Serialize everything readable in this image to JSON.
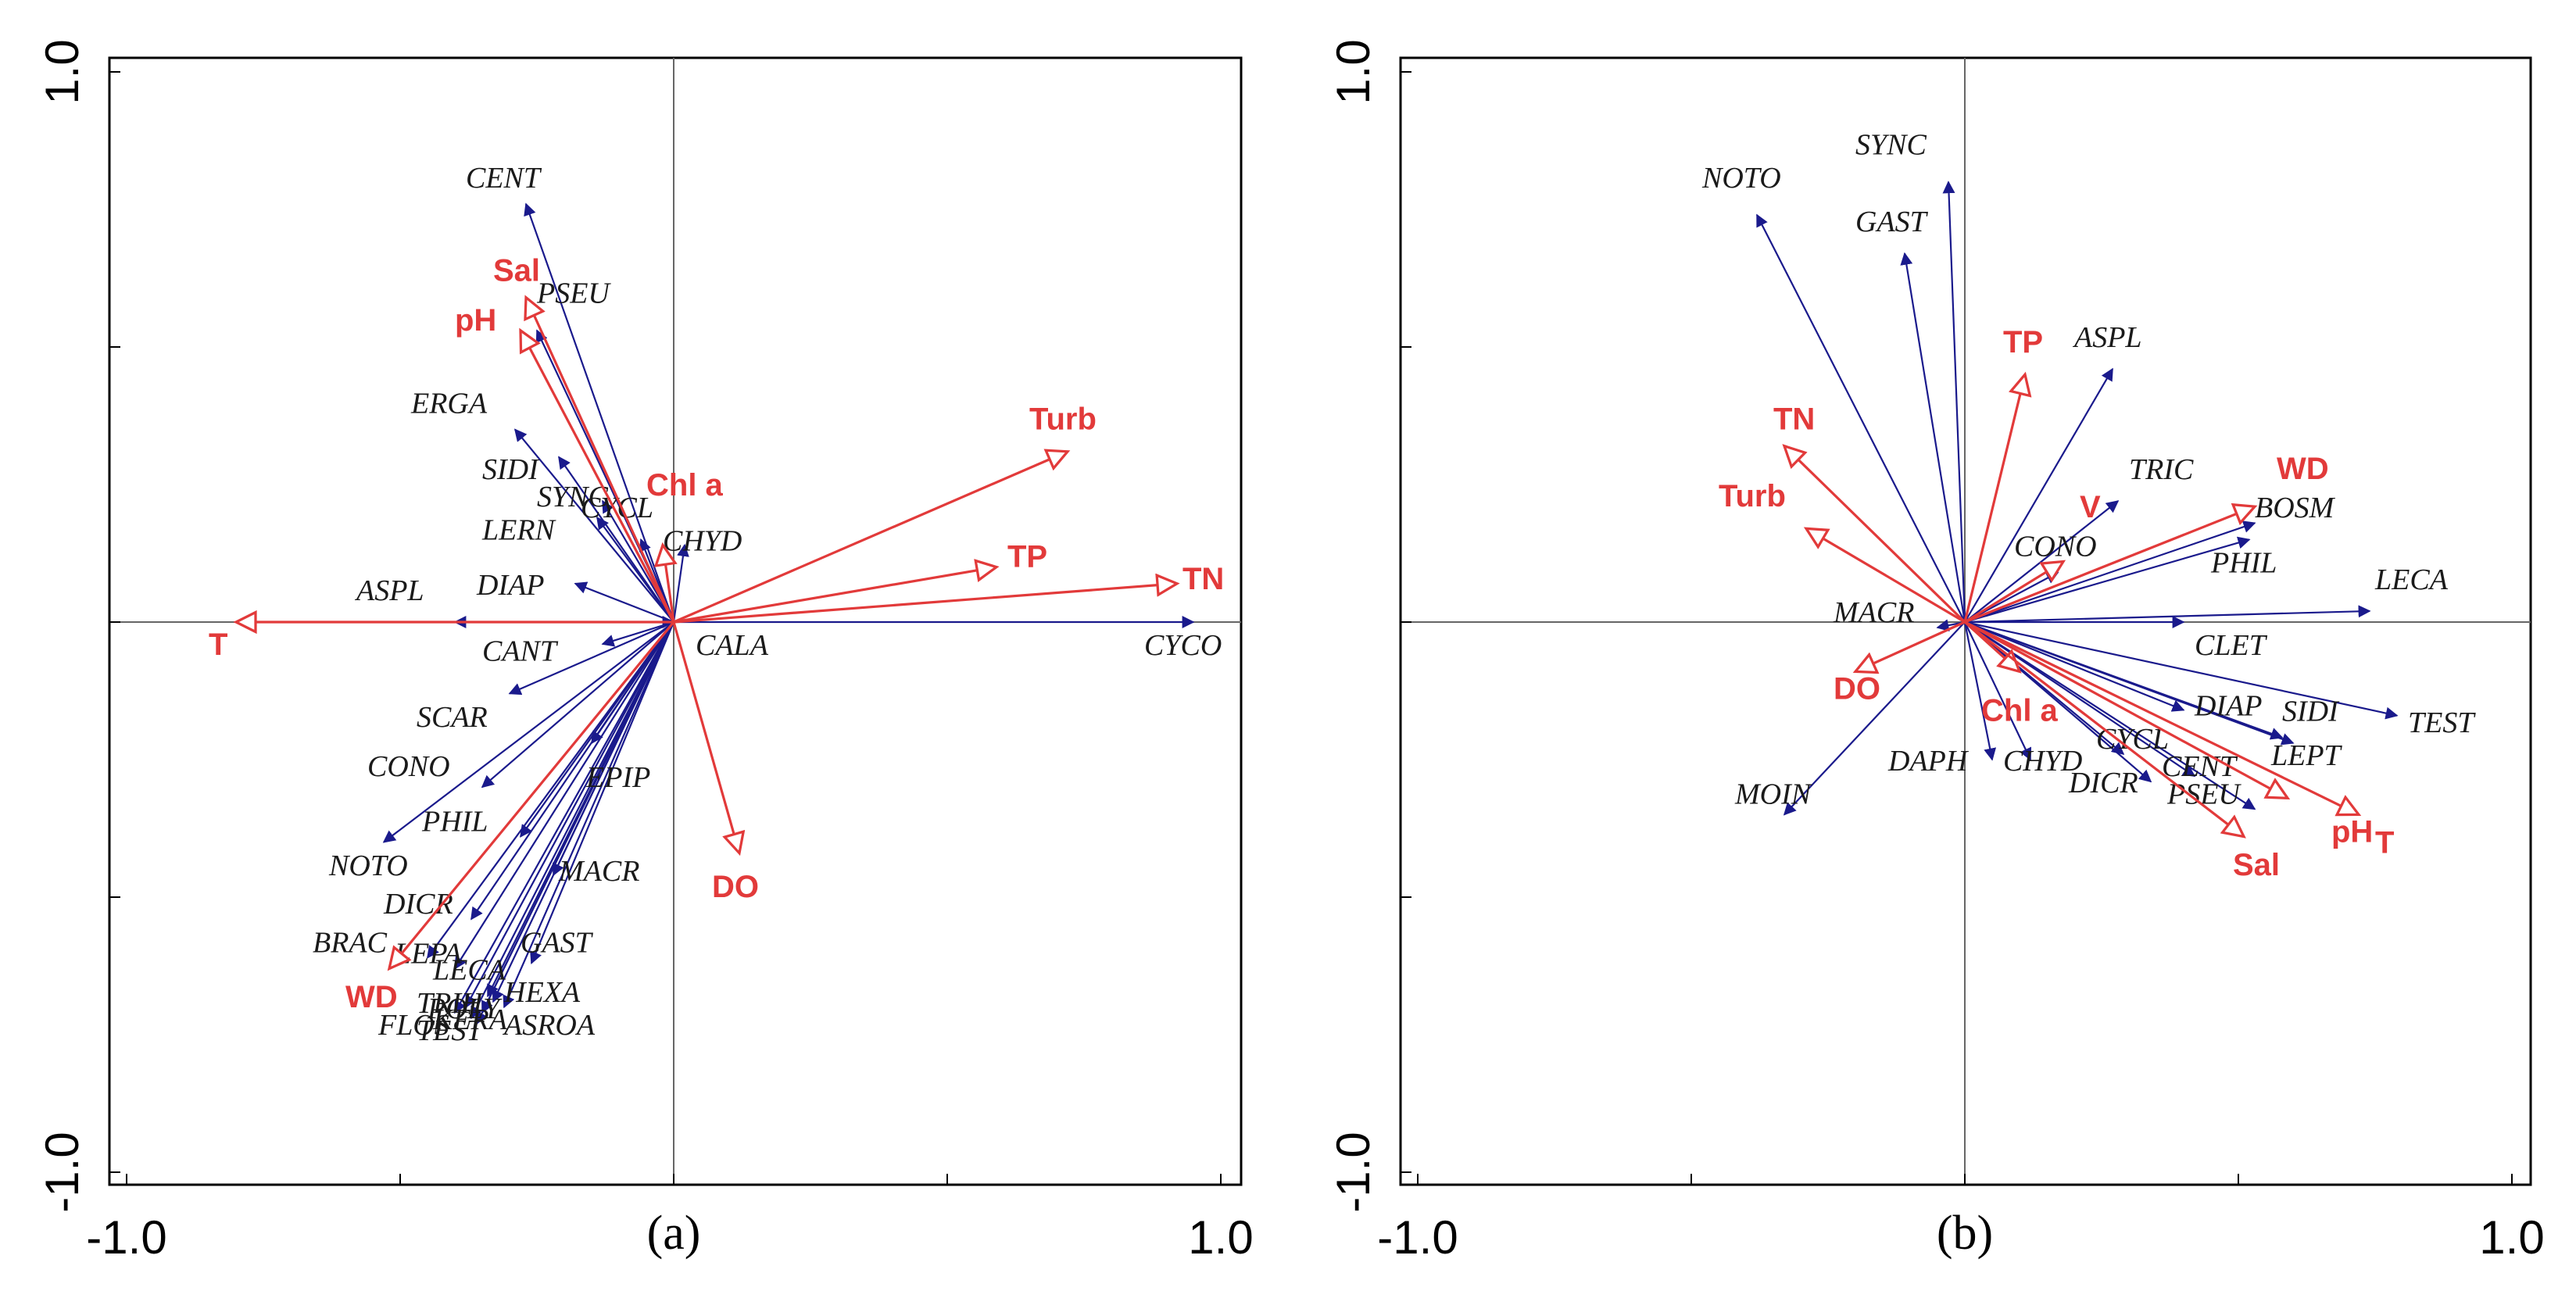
{
  "colors": {
    "species": "#1a1a8c",
    "env": "#e23a3a",
    "frame": "#000000",
    "axis": "#555555"
  },
  "chart_data": [
    {
      "type": "scatter",
      "plot_kind": "biplot",
      "panel_label": "(a)",
      "xlim": [
        -1.0,
        1.0
      ],
      "ylim": [
        -1.0,
        1.0
      ],
      "x_tick_labels": [
        "-1.0",
        "1.0"
      ],
      "y_tick_labels": [
        "1.0",
        "-1.0"
      ],
      "species": [
        {
          "name": "CENT",
          "x": -0.27,
          "y": 0.76
        },
        {
          "name": "PSEU",
          "x": -0.25,
          "y": 0.53
        },
        {
          "name": "ERGA",
          "x": -0.29,
          "y": 0.35
        },
        {
          "name": "SIDI",
          "x": -0.21,
          "y": 0.3
        },
        {
          "name": "SYNC",
          "x": -0.13,
          "y": 0.22
        },
        {
          "name": "CYCL",
          "x": -0.06,
          "y": 0.15
        },
        {
          "name": "LERN",
          "x": -0.14,
          "y": 0.19
        },
        {
          "name": "CHYD",
          "x": 0.02,
          "y": 0.14
        },
        {
          "name": "DIAP",
          "x": -0.18,
          "y": 0.07
        },
        {
          "name": "ASPL",
          "x": -0.4,
          "y": 0.0
        },
        {
          "name": "CALA",
          "x": 0.0,
          "y": 0.0
        },
        {
          "name": "CYCO",
          "x": 0.95,
          "y": 0.0
        },
        {
          "name": "CANT",
          "x": -0.13,
          "y": -0.04
        },
        {
          "name": "SCAR",
          "x": -0.3,
          "y": -0.13
        },
        {
          "name": "CONO",
          "x": -0.35,
          "y": -0.3
        },
        {
          "name": "PHIL",
          "x": -0.28,
          "y": -0.39
        },
        {
          "name": "NOTO",
          "x": -0.53,
          "y": -0.4
        },
        {
          "name": "EPIP",
          "x": -0.15,
          "y": -0.22
        },
        {
          "name": "MACR",
          "x": -0.22,
          "y": -0.46
        },
        {
          "name": "DICR",
          "x": -0.37,
          "y": -0.54
        },
        {
          "name": "GAST",
          "x": -0.26,
          "y": -0.62
        },
        {
          "name": "BRAC",
          "x": -0.45,
          "y": -0.61
        },
        {
          "name": "LEPA",
          "x": -0.4,
          "y": -0.63
        },
        {
          "name": "LECA",
          "x": -0.34,
          "y": -0.68
        },
        {
          "name": "HEXA",
          "x": -0.31,
          "y": -0.7
        },
        {
          "name": "TRIH",
          "x": -0.37,
          "y": -0.72
        },
        {
          "name": "POLY",
          "x": -0.35,
          "y": -0.71
        },
        {
          "name": "TEST",
          "x": -0.38,
          "y": -0.7
        },
        {
          "name": "FLOS",
          "x": -0.4,
          "y": -0.71
        },
        {
          "name": "KERA",
          "x": -0.36,
          "y": -0.73
        },
        {
          "name": "ASROA",
          "x": -0.33,
          "y": -0.69
        }
      ],
      "species_labels": [
        {
          "text": "CENT",
          "x": -0.38,
          "y": 0.79
        },
        {
          "text": "PSEU",
          "x": -0.25,
          "y": 0.58
        },
        {
          "text": "ERGA",
          "x": -0.48,
          "y": 0.38
        },
        {
          "text": "SIDI",
          "x": -0.35,
          "y": 0.26
        },
        {
          "text": "SYNC",
          "x": -0.25,
          "y": 0.21
        },
        {
          "text": "CYCL",
          "x": -0.17,
          "y": 0.19
        },
        {
          "text": "LERN",
          "x": -0.35,
          "y": 0.15
        },
        {
          "text": "CHYD",
          "x": -0.02,
          "y": 0.13
        },
        {
          "text": "DIAP",
          "x": -0.36,
          "y": 0.05
        },
        {
          "text": "ASPL",
          "x": -0.58,
          "y": 0.04
        },
        {
          "text": "CALA",
          "x": 0.04,
          "y": -0.06
        },
        {
          "text": "CYCO",
          "x": 0.86,
          "y": -0.06
        },
        {
          "text": "CANT",
          "x": -0.35,
          "y": -0.07
        },
        {
          "text": "SCAR",
          "x": -0.47,
          "y": -0.19
        },
        {
          "text": "CONO",
          "x": -0.56,
          "y": -0.28
        },
        {
          "text": "PHIL",
          "x": -0.46,
          "y": -0.38
        },
        {
          "text": "NOTO",
          "x": -0.63,
          "y": -0.46
        },
        {
          "text": "EPIP",
          "x": -0.16,
          "y": -0.3
        },
        {
          "text": "MACR",
          "x": -0.21,
          "y": -0.47
        },
        {
          "text": "DICR",
          "x": -0.53,
          "y": -0.53
        },
        {
          "text": "GAST",
          "x": -0.28,
          "y": -0.6
        },
        {
          "text": "BRAC",
          "x": -0.66,
          "y": -0.6
        },
        {
          "text": "LEPA",
          "x": -0.51,
          "y": -0.62
        },
        {
          "text": "LECA",
          "x": -0.44,
          "y": -0.65
        },
        {
          "text": "HEXA",
          "x": -0.31,
          "y": -0.69
        },
        {
          "text": "TRIH",
          "x": -0.47,
          "y": -0.71
        },
        {
          "text": "POLY",
          "x": -0.45,
          "y": -0.72
        },
        {
          "text": "TEST",
          "x": -0.47,
          "y": -0.76
        },
        {
          "text": "FLOS",
          "x": -0.54,
          "y": -0.75
        },
        {
          "text": "KERA",
          "x": -0.44,
          "y": -0.74
        },
        {
          "text": "ASROA",
          "x": -0.31,
          "y": -0.75
        }
      ],
      "environment": [
        {
          "name": "T",
          "x": -0.8,
          "y": 0.0,
          "lx": -0.85,
          "ly": -0.06
        },
        {
          "name": "Sal",
          "x": -0.27,
          "y": 0.59,
          "lx": -0.33,
          "ly": 0.62
        },
        {
          "name": "pH",
          "x": -0.28,
          "y": 0.53,
          "lx": -0.4,
          "ly": 0.53
        },
        {
          "name": "Chl a",
          "x": -0.02,
          "y": 0.14,
          "lx": -0.05,
          "ly": 0.23
        },
        {
          "name": "Turb",
          "x": 0.72,
          "y": 0.31,
          "lx": 0.65,
          "ly": 0.35
        },
        {
          "name": "TP",
          "x": 0.59,
          "y": 0.1,
          "lx": 0.61,
          "ly": 0.1
        },
        {
          "name": "TN",
          "x": 0.92,
          "y": 0.07,
          "lx": 0.93,
          "ly": 0.06
        },
        {
          "name": "DO",
          "x": 0.12,
          "y": -0.42,
          "lx": 0.07,
          "ly": -0.5
        },
        {
          "name": "WD",
          "x": -0.52,
          "y": -0.63,
          "lx": -0.6,
          "ly": -0.7
        }
      ]
    },
    {
      "type": "scatter",
      "plot_kind": "biplot",
      "panel_label": "(b)",
      "xlim": [
        -1.0,
        1.0
      ],
      "ylim": [
        -1.0,
        1.0
      ],
      "x_tick_labels": [
        "-1.0",
        "1.0"
      ],
      "y_tick_labels": [
        "1.0",
        "-1.0"
      ],
      "species": [
        {
          "name": "NOTO",
          "x": -0.38,
          "y": 0.74
        },
        {
          "name": "SYNC",
          "x": -0.03,
          "y": 0.8
        },
        {
          "name": "GAST",
          "x": -0.11,
          "y": 0.67
        },
        {
          "name": "ASPL",
          "x": 0.27,
          "y": 0.46
        },
        {
          "name": "TRIC",
          "x": 0.28,
          "y": 0.22
        },
        {
          "name": "CONO",
          "x": 0.17,
          "y": 0.09
        },
        {
          "name": "BOSM",
          "x": 0.53,
          "y": 0.18
        },
        {
          "name": "PHIL",
          "x": 0.52,
          "y": 0.15
        },
        {
          "name": "LECA",
          "x": 0.74,
          "y": 0.02
        },
        {
          "name": "CLET",
          "x": 0.4,
          "y": 0.0
        },
        {
          "name": "MACR",
          "x": -0.05,
          "y": -0.01
        },
        {
          "name": "DIAP",
          "x": 0.4,
          "y": -0.16
        },
        {
          "name": "SIDI",
          "x": 0.58,
          "y": -0.21
        },
        {
          "name": "TEST",
          "x": 0.79,
          "y": -0.17
        },
        {
          "name": "LEPT",
          "x": 0.6,
          "y": -0.22
        },
        {
          "name": "CENT",
          "x": 0.42,
          "y": -0.28
        },
        {
          "name": "CYCL",
          "x": 0.29,
          "y": -0.24
        },
        {
          "name": "PSEU",
          "x": 0.53,
          "y": -0.34
        },
        {
          "name": "DICR",
          "x": 0.34,
          "y": -0.29
        },
        {
          "name": "CHYD",
          "x": 0.12,
          "y": -0.25
        },
        {
          "name": "DAPH",
          "x": 0.05,
          "y": -0.25
        },
        {
          "name": "MOIN",
          "x": -0.33,
          "y": -0.35
        }
      ],
      "species_labels": [
        {
          "text": "NOTO",
          "x": -0.48,
          "y": 0.79
        },
        {
          "text": "SYNC",
          "x": -0.2,
          "y": 0.85
        },
        {
          "text": "GAST",
          "x": -0.2,
          "y": 0.71
        },
        {
          "text": "ASPL",
          "x": 0.2,
          "y": 0.5
        },
        {
          "text": "TRIC",
          "x": 0.3,
          "y": 0.26
        },
        {
          "text": "CONO",
          "x": 0.09,
          "y": 0.12
        },
        {
          "text": "BOSM",
          "x": 0.53,
          "y": 0.19
        },
        {
          "text": "PHIL",
          "x": 0.45,
          "y": 0.09
        },
        {
          "text": "LECA",
          "x": 0.75,
          "y": 0.06
        },
        {
          "text": "CLET",
          "x": 0.42,
          "y": -0.06
        },
        {
          "text": "MACR",
          "x": -0.24,
          "y": 0.0
        },
        {
          "text": "DIAP",
          "x": 0.42,
          "y": -0.17
        },
        {
          "text": "SIDI",
          "x": 0.58,
          "y": -0.18
        },
        {
          "text": "TEST",
          "x": 0.81,
          "y": -0.2
        },
        {
          "text": "LEPT",
          "x": 0.56,
          "y": -0.26
        },
        {
          "text": "CENT",
          "x": 0.36,
          "y": -0.28
        },
        {
          "text": "CYCL",
          "x": 0.24,
          "y": -0.23
        },
        {
          "text": "PSEU",
          "x": 0.37,
          "y": -0.33
        },
        {
          "text": "DICR",
          "x": 0.19,
          "y": -0.31
        },
        {
          "text": "CHYD",
          "x": 0.07,
          "y": -0.27
        },
        {
          "text": "DAPH",
          "x": -0.14,
          "y": -0.27
        },
        {
          "text": "MOIN",
          "x": -0.42,
          "y": -0.33
        }
      ],
      "environment": [
        {
          "name": "TP",
          "x": 0.11,
          "y": 0.45,
          "lx": 0.07,
          "ly": 0.49
        },
        {
          "name": "TN",
          "x": -0.33,
          "y": 0.32,
          "lx": -0.35,
          "ly": 0.35
        },
        {
          "name": "Turb",
          "x": -0.29,
          "y": 0.17,
          "lx": -0.45,
          "ly": 0.21
        },
        {
          "name": "WD",
          "x": 0.53,
          "y": 0.21,
          "lx": 0.57,
          "ly": 0.26
        },
        {
          "name": "V",
          "x": 0.18,
          "y": 0.11,
          "lx": 0.21,
          "ly": 0.19
        },
        {
          "name": "DO",
          "x": -0.2,
          "y": -0.09,
          "lx": -0.24,
          "ly": -0.14
        },
        {
          "name": "Chl a",
          "x": 0.1,
          "y": -0.09,
          "lx": 0.03,
          "ly": -0.18
        },
        {
          "name": "Sal",
          "x": 0.51,
          "y": -0.39,
          "lx": 0.49,
          "ly": -0.46
        },
        {
          "name": "pH",
          "x": 0.59,
          "y": -0.32,
          "lx": 0.67,
          "ly": -0.4
        },
        {
          "name": "T",
          "x": 0.72,
          "y": -0.35,
          "lx": 0.75,
          "ly": -0.42
        }
      ]
    }
  ]
}
